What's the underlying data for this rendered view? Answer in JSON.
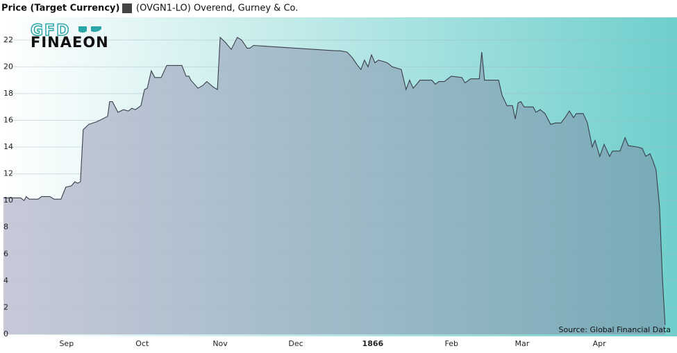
{
  "chart_data": {
    "type": "area",
    "title": "Price (Target Currency)",
    "source": "Source: Global Financial Data",
    "logo_lines": [
      "GFD",
      "FINAEON"
    ],
    "x": [
      -9.6,
      -6.9,
      -2.8,
      -1.4,
      -0.6,
      0.6,
      4.1,
      5.5,
      8.8,
      10.5,
      13.2,
      15.1,
      17.3,
      18.7,
      19.8,
      20.9,
      22.0,
      24.2,
      27.5,
      31.7,
      32.5,
      33.6,
      35.8,
      38.0,
      39.9,
      41.3,
      42.7,
      44.9,
      46.3,
      47.4,
      49.0,
      50.4,
      52.9,
      55.1,
      61.1,
      62.8,
      63.9,
      64.7,
      67.5,
      69.4,
      71.0,
      73.5,
      75.2,
      76.3,
      78.5,
      80.7,
      83.1,
      84.8,
      87.0,
      88.1,
      89.5,
      122.0,
      123.9,
      126.6,
      128.6,
      130.8,
      132.1,
      133.5,
      134.9,
      136.3,
      137.7,
      139.0,
      141.0,
      142.6,
      144.5,
      148.1,
      150.0,
      151.4,
      152.8,
      154.2,
      155.5,
      160.2,
      161.6,
      163.0,
      165.2,
      167.9,
      172.1,
      173.4,
      175.6,
      179.0,
      180.0,
      181.1,
      186.7,
      188.0,
      190.0,
      192.2,
      193.3,
      194.4,
      195.5,
      196.8,
      200.4,
      201.5,
      203.2,
      205.1,
      207.3,
      209.2,
      211.4,
      213.4,
      214.7,
      216.4,
      217.5,
      220.2,
      221.9,
      223.8,
      224.9,
      226.8,
      228.5,
      230.7,
      231.8,
      234.8,
      236.8,
      238.1,
      241.7,
      243.6,
      245.0,
      246.7,
      247.8,
      249.1,
      250.5,
      251.6,
      252.7
    ],
    "series": [
      {
        "name": "(OVGN1-LO) Overend, Gurney & Co.",
        "color": "#444444",
        "line_color": "#3a3f4a",
        "values": [
          10.2,
          10.2,
          10.2,
          10.0,
          10.3,
          10.1,
          10.1,
          10.3,
          10.3,
          10.1,
          10.1,
          11.0,
          11.1,
          11.4,
          11.3,
          11.4,
          15.3,
          15.7,
          15.9,
          16.3,
          17.4,
          17.4,
          16.6,
          16.8,
          16.7,
          16.9,
          16.8,
          17.1,
          18.3,
          18.4,
          19.7,
          19.2,
          19.2,
          20.1,
          20.1,
          19.3,
          19.3,
          19.0,
          18.4,
          18.6,
          18.9,
          18.5,
          18.3,
          22.2,
          21.8,
          21.3,
          22.2,
          22.0,
          21.4,
          21.4,
          21.6,
          21.2,
          21.2,
          21.1,
          20.7,
          20.1,
          19.8,
          20.5,
          20.0,
          20.9,
          20.3,
          20.5,
          20.4,
          20.3,
          20.0,
          19.8,
          18.3,
          19.0,
          18.4,
          18.7,
          19.0,
          19.0,
          18.7,
          18.9,
          18.9,
          19.3,
          19.2,
          18.8,
          19.1,
          19.1,
          21.1,
          19.0,
          19.0,
          17.9,
          17.1,
          17.1,
          16.1,
          17.3,
          17.4,
          17.0,
          17.0,
          16.6,
          16.8,
          16.5,
          15.7,
          15.8,
          15.8,
          16.3,
          16.7,
          16.2,
          16.5,
          16.5,
          15.8,
          14.0,
          14.5,
          13.3,
          14.2,
          13.3,
          13.7,
          13.7,
          14.7,
          14.1,
          14.0,
          13.9,
          13.3,
          13.5,
          13.0,
          12.3,
          9.5,
          4.3,
          0.7
        ]
      }
    ],
    "xlim": [
      -9.6,
      257.4
    ],
    "xticks": [
      {
        "value": 15.4,
        "label": "Sep"
      },
      {
        "value": 45.4,
        "label": "Oct"
      },
      {
        "value": 76.3,
        "label": "Nov"
      },
      {
        "value": 106.3,
        "label": "Dec"
      },
      {
        "value": 136.8,
        "label": "1866",
        "bold": true
      },
      {
        "value": 168.0,
        "label": "Feb"
      },
      {
        "value": 196.0,
        "label": "Mar"
      },
      {
        "value": 226.6,
        "label": "Apr"
      }
    ],
    "ylim": [
      0,
      23.7
    ],
    "yticks": [
      0,
      2,
      4,
      6,
      8,
      10,
      12,
      14,
      16,
      18,
      20,
      22
    ],
    "grid": true
  }
}
